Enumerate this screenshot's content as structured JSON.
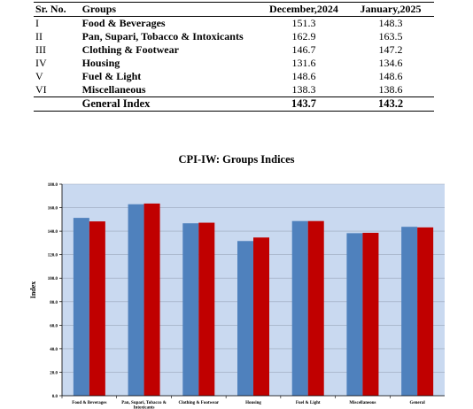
{
  "table": {
    "headers": [
      "Sr. No.",
      "Groups",
      "December,2024",
      "January,2025"
    ],
    "rows": [
      {
        "no": "I",
        "group": "Food & Beverages",
        "dec": "151.3",
        "jan": "148.3"
      },
      {
        "no": "II",
        "group": "Pan, Supari, Tobacco & Intoxicants",
        "dec": "162.9",
        "jan": "163.5"
      },
      {
        "no": "III",
        "group": "Clothing & Footwear",
        "dec": "146.7",
        "jan": "147.2"
      },
      {
        "no": "IV",
        "group": "Housing",
        "dec": "131.6",
        "jan": "134.6"
      },
      {
        "no": "V",
        "group": "Fuel & Light",
        "dec": "148.6",
        "jan": "148.6"
      },
      {
        "no": "VI",
        "group": "Miscellaneous",
        "dec": "138.3",
        "jan": "138.6"
      }
    ],
    "total": {
      "label": "General Index",
      "dec": "143.7",
      "jan": "143.2"
    }
  },
  "chart_data": {
    "type": "bar",
    "title": "CPI-IW: Groups Indices",
    "ylabel": "Index",
    "xlabel": "",
    "ylim": [
      0,
      180
    ],
    "yticks": [
      "0.0",
      "20.0",
      "40.0",
      "60.0",
      "80.0",
      "100.0",
      "120.0",
      "140.0",
      "160.0",
      "180.0"
    ],
    "categories": [
      "Food & Beverages",
      "Pan, Supari, Tobacco & Intoxicants",
      "Clothing & Footwear",
      "Housing",
      "Fuel & Light",
      "Miscellaneous",
      "General"
    ],
    "series": [
      {
        "values": [
          151.3,
          162.9,
          146.7,
          131.6,
          148.6,
          138.3,
          143.7
        ],
        "color": "#4f81bd"
      },
      {
        "values": [
          148.3,
          163.5,
          147.2,
          134.6,
          148.6,
          138.6,
          143.2
        ],
        "color": "#c00000"
      }
    ],
    "plot_background": "#c9d9f0",
    "grid": true
  }
}
